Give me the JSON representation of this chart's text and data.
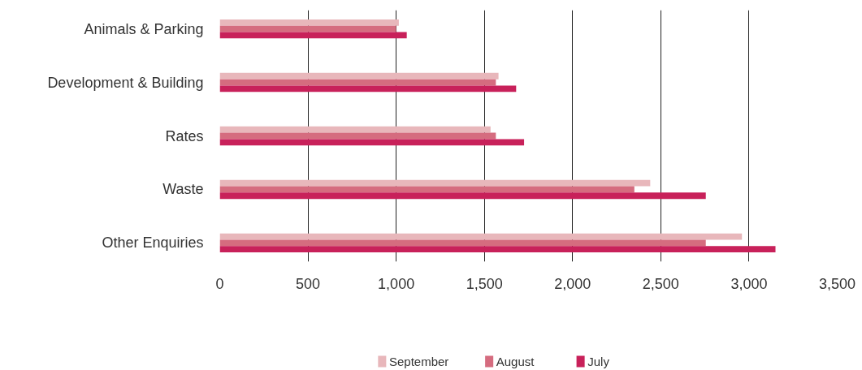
{
  "chart_data": {
    "type": "bar",
    "orientation": "horizontal",
    "categories": [
      "Animals & Parking",
      "Development & Building",
      "Rates",
      "Waste",
      "Other Enquiries"
    ],
    "series": [
      {
        "name": "September",
        "color": "#e8b7bb",
        "values": [
          1015,
          1580,
          1535,
          2440,
          2960
        ]
      },
      {
        "name": "August",
        "color": "#d56c7f",
        "values": [
          1000,
          1565,
          1565,
          2350,
          2755
        ]
      },
      {
        "name": "July",
        "color": "#c8215a",
        "values": [
          1060,
          1680,
          1725,
          2755,
          3150
        ]
      }
    ],
    "xlim": [
      0,
      3500
    ],
    "xticks": [
      0,
      {
        "value": 500,
        "label": "500"
      },
      {
        "value": 1000,
        "label": "1,000"
      },
      {
        "value": 1500,
        "label": "1,500"
      },
      {
        "value": 2000,
        "label": "2,000"
      },
      {
        "value": 2500,
        "label": "2,500"
      },
      {
        "value": 3000,
        "label": "3,000"
      },
      {
        "value": 3500,
        "label": "3,500"
      }
    ],
    "grid": "x",
    "legend": "bottom"
  }
}
